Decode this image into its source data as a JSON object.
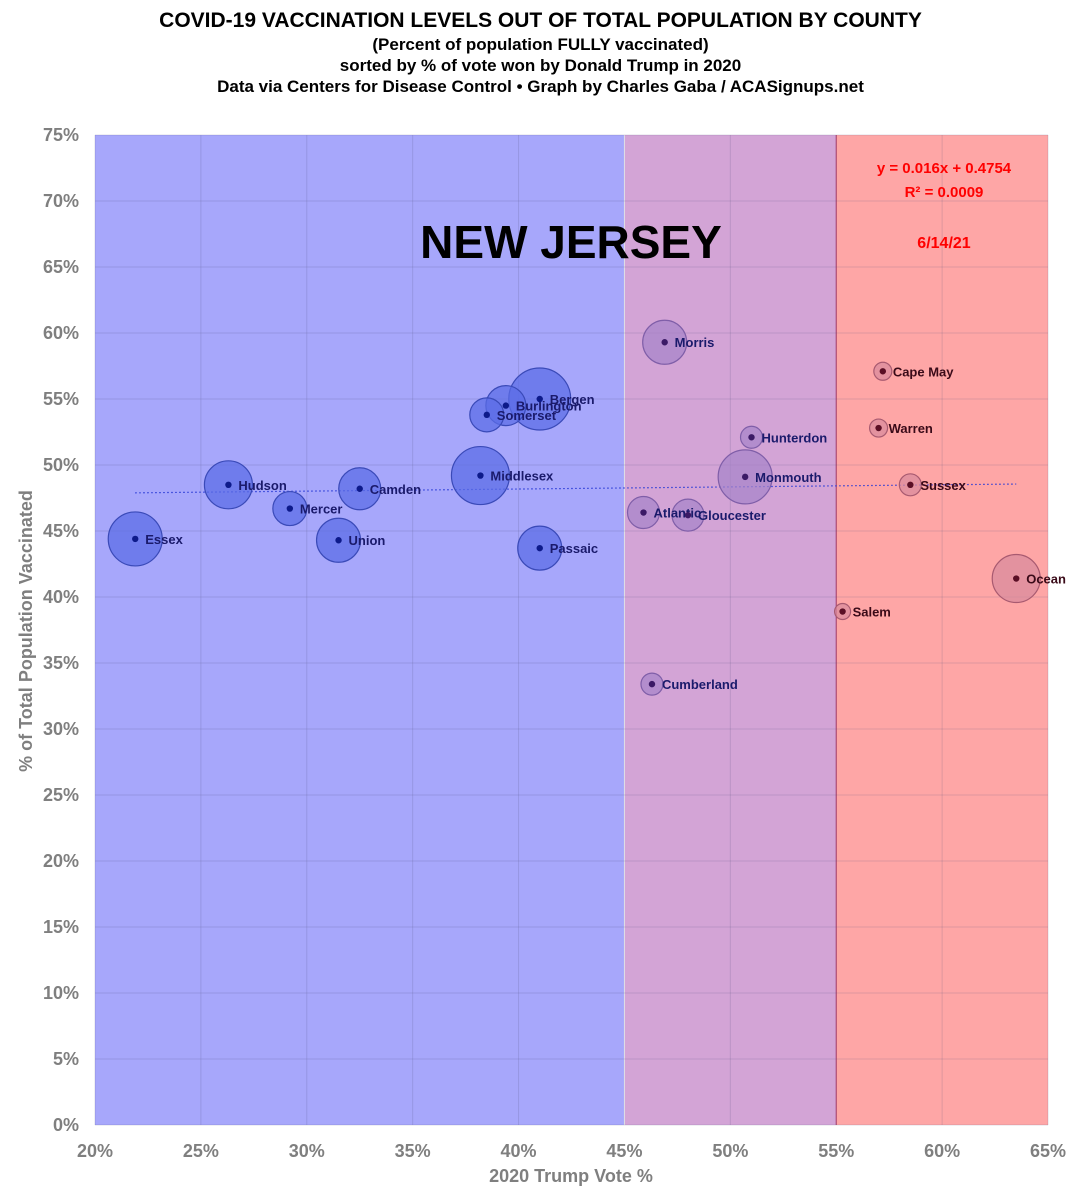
{
  "header": {
    "title": "COVID-19 VACCINATION LEVELS OUT OF TOTAL POPULATION BY COUNTY",
    "subtitle1": "(Percent of population FULLY vaccinated)",
    "subtitle2": "sorted by % of vote won by Donald Trump in 2020",
    "credit": "Data via Centers for Disease Control • Graph by Charles Gaba / ACASignups.net"
  },
  "chart_data": {
    "type": "scatter",
    "state_label": "NEW JERSEY",
    "date_label": "6/14/21",
    "trendline": {
      "equation": "y = 0.016x + 0.4754",
      "r2": "R² = 0.0009",
      "slope": 0.016,
      "intercept": 0.4754
    },
    "xlabel": "2020 Trump Vote %",
    "ylabel": "% of Total Population Vaccinated",
    "xlim": [
      0.2,
      0.65
    ],
    "ylim": [
      0,
      0.75
    ],
    "xticks": [
      "20%",
      "25%",
      "30%",
      "35%",
      "40%",
      "45%",
      "50%",
      "55%",
      "60%",
      "65%"
    ],
    "yticks": [
      "0%",
      "5%",
      "10%",
      "15%",
      "20%",
      "25%",
      "30%",
      "35%",
      "40%",
      "45%",
      "50%",
      "55%",
      "60%",
      "65%",
      "70%",
      "75%"
    ],
    "grid": true,
    "bands": [
      {
        "from": 0.2,
        "to": 0.45,
        "color": "#a7a7fb"
      },
      {
        "from": 0.45,
        "to": 0.55,
        "color": "#d3a4d6"
      },
      {
        "from": 0.55,
        "to": 0.65,
        "color": "#fea6a6"
      }
    ],
    "colors": {
      "blue_bubble": "#5a6ce6",
      "purple_bubble": "#a684c9",
      "red_bubble": "#d88a9c",
      "label": "#1a1a6b",
      "label_red": "#3a0a18",
      "accent_red": "#ff0000"
    },
    "points": [
      {
        "county": "Essex",
        "x": 0.219,
        "y": 0.444,
        "size": 27,
        "group": "blue"
      },
      {
        "county": "Hudson",
        "x": 0.263,
        "y": 0.485,
        "size": 24,
        "group": "blue"
      },
      {
        "county": "Mercer",
        "x": 0.292,
        "y": 0.467,
        "size": 17,
        "group": "blue"
      },
      {
        "county": "Union",
        "x": 0.315,
        "y": 0.443,
        "size": 22,
        "group": "blue"
      },
      {
        "county": "Camden",
        "x": 0.325,
        "y": 0.482,
        "size": 21,
        "group": "blue"
      },
      {
        "county": "Middlesex",
        "x": 0.382,
        "y": 0.492,
        "size": 29,
        "group": "blue"
      },
      {
        "county": "Somerset",
        "x": 0.385,
        "y": 0.538,
        "size": 17,
        "group": "blue"
      },
      {
        "county": "Burlington",
        "x": 0.394,
        "y": 0.545,
        "size": 20,
        "group": "blue"
      },
      {
        "county": "Bergen",
        "x": 0.41,
        "y": 0.55,
        "size": 31,
        "group": "blue"
      },
      {
        "county": "Passaic",
        "x": 0.41,
        "y": 0.437,
        "size": 22,
        "group": "blue"
      },
      {
        "county": "Morris",
        "x": 0.469,
        "y": 0.593,
        "size": 22,
        "group": "purple"
      },
      {
        "county": "Atlantic",
        "x": 0.459,
        "y": 0.464,
        "size": 16,
        "group": "purple"
      },
      {
        "county": "Gloucester",
        "x": 0.48,
        "y": 0.462,
        "size": 16,
        "group": "purple"
      },
      {
        "county": "Cumberland",
        "x": 0.463,
        "y": 0.334,
        "size": 11,
        "group": "purple"
      },
      {
        "county": "Hunterdon",
        "x": 0.51,
        "y": 0.521,
        "size": 11,
        "group": "purple"
      },
      {
        "county": "Monmouth",
        "x": 0.507,
        "y": 0.491,
        "size": 27,
        "group": "purple"
      },
      {
        "county": "Cape May",
        "x": 0.572,
        "y": 0.571,
        "size": 9,
        "group": "red"
      },
      {
        "county": "Warren",
        "x": 0.57,
        "y": 0.528,
        "size": 9,
        "group": "red"
      },
      {
        "county": "Sussex",
        "x": 0.585,
        "y": 0.485,
        "size": 11,
        "group": "red"
      },
      {
        "county": "Salem",
        "x": 0.553,
        "y": 0.389,
        "size": 8,
        "group": "red"
      },
      {
        "county": "Ocean",
        "x": 0.635,
        "y": 0.414,
        "size": 24,
        "group": "red"
      }
    ]
  }
}
